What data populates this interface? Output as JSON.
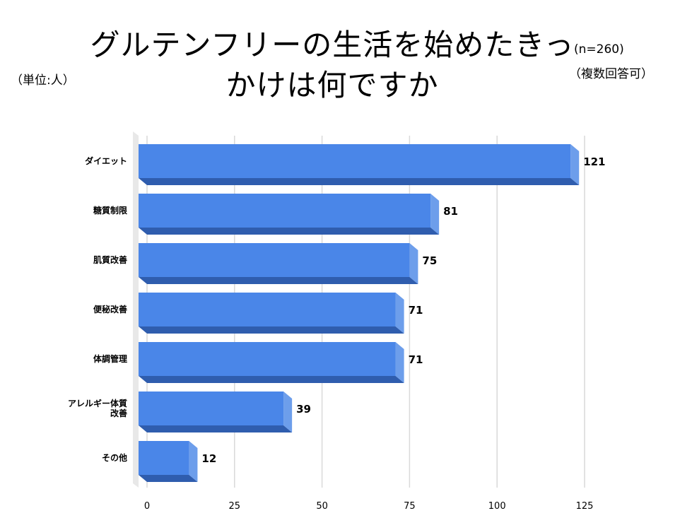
{
  "header": {
    "title_line1": "グルテンフリーの生活を始めたきっ",
    "title_line2": "かけは何ですか",
    "unit": "（単位:人）",
    "sample": "(n=260)",
    "answer_type": "（複数回答可）"
  },
  "colors": {
    "bar_front": "#4a86e8",
    "bar_side": "#2f5dae",
    "bar_bottom": "#2f5dae",
    "bar_top_highlight": "#6d9eeb",
    "grid": "#d9d9d9",
    "axis_wall": "#e8e8e8"
  },
  "chart_data": {
    "type": "bar",
    "orientation": "horizontal",
    "title": "グルテンフリーの生活を始めたきっかけは何ですか",
    "categories": [
      [
        "ダイエット"
      ],
      [
        "糖質制限"
      ],
      [
        "肌質改善"
      ],
      [
        "便秘改善"
      ],
      [
        "体調管理"
      ],
      [
        "アレルギー体質",
        "改善"
      ],
      [
        "その他"
      ]
    ],
    "values": [
      121,
      81,
      75,
      71,
      71,
      39,
      12
    ],
    "value_labels": [
      "121",
      "81",
      "75",
      "71",
      "71",
      "39",
      "12"
    ],
    "xlim": [
      0,
      125
    ],
    "xticks": [
      0,
      25,
      50,
      75,
      100,
      125
    ],
    "xtick_labels": [
      "0",
      "25",
      "50",
      "75",
      "100",
      "125"
    ],
    "xlabel": "",
    "ylabel": "",
    "grid": true,
    "style": "3d"
  }
}
